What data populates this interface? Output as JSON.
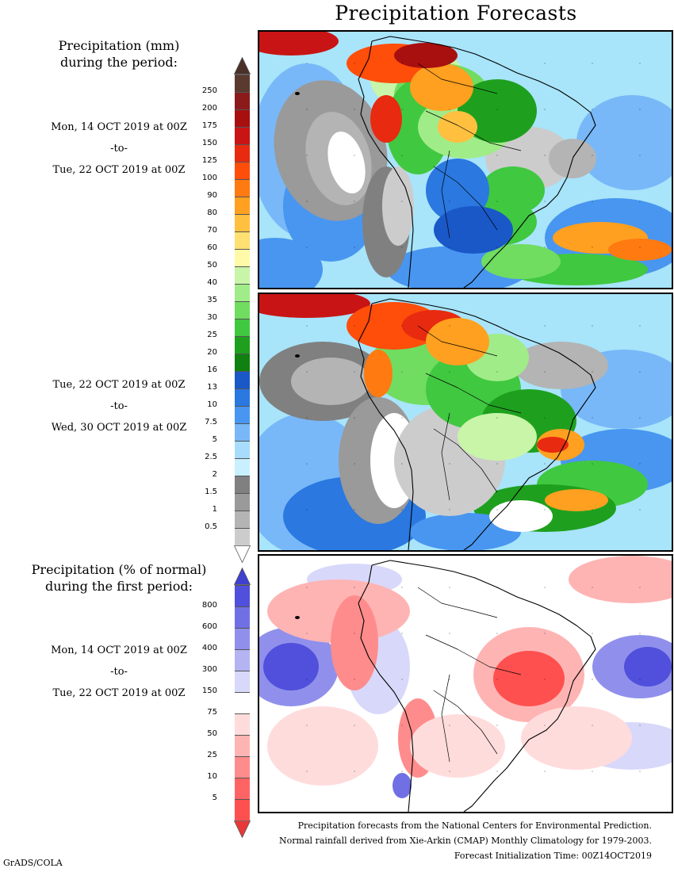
{
  "title": "Precipitation Forecasts",
  "left_column": {
    "precip_heading": [
      "Precipitation (mm)",
      "during the period:"
    ],
    "period1": {
      "start": "Mon, 14 OCT 2019 at 00Z",
      "sep": "-to-",
      "end": "Tue, 22 OCT 2019 at 00Z"
    },
    "period2": {
      "start": "Tue, 22 OCT 2019 at 00Z",
      "sep": "-to-",
      "end": "Wed, 30 OCT 2019 at 00Z"
    },
    "pct_heading": [
      "Precipitation (% of normal)",
      "during the first period:"
    ],
    "period3": {
      "start": "Mon, 14 OCT 2019 at 00Z",
      "sep": "-to-",
      "end": "Tue, 22 OCT 2019 at 00Z"
    }
  },
  "precip_scale": {
    "labels": [
      "250",
      "200",
      "175",
      "150",
      "125",
      "100",
      "90",
      "80",
      "70",
      "60",
      "50",
      "40",
      "35",
      "30",
      "25",
      "20",
      "16",
      "13",
      "10",
      "7.5",
      "5",
      "2.5",
      "2",
      "1.5",
      "1",
      "0.5"
    ],
    "colors": [
      "#5a3a2e",
      "#8b1a1a",
      "#a80f0f",
      "#c81414",
      "#e82a10",
      "#ff4d0a",
      "#ff7a10",
      "#ffa020",
      "#ffc040",
      "#ffe070",
      "#fffaa8",
      "#c8f5a8",
      "#a0ec88",
      "#70dc60",
      "#40c840",
      "#1ea01e",
      "#108010",
      "#1a58c8",
      "#2a78e0",
      "#4896f0",
      "#78b8f8",
      "#a8dcfc",
      "#c8f0ff",
      "#808080",
      "#9a9a9a",
      "#b4b4b4",
      "#cccccc"
    ],
    "over_color": "#4a3028",
    "under_color": "#ffffff"
  },
  "pct_scale": {
    "labels": [
      "800",
      "600",
      "400",
      "300",
      "150",
      "75",
      "50",
      "25",
      "10",
      "5"
    ],
    "colors": [
      "#5050dc",
      "#7070e4",
      "#9090ec",
      "#b4b4f2",
      "#d8d8fa",
      "#ffffff",
      "#ffdcdc",
      "#ffb4b4",
      "#ff8c8c",
      "#ff6464",
      "#ff5050"
    ],
    "over_color": "#4040d0",
    "under_color": "#e83838"
  },
  "maps": {
    "panel1": "Precipitation (mm) 14-22 OCT 2019",
    "panel2": "Precipitation (mm) 22-30 OCT 2019",
    "panel3": "Precipitation (% of normal) 14-22 OCT 2019"
  },
  "footer": {
    "line1": "Precipitation forecasts from the National Centers for Environmental Prediction.",
    "line2": "Normal rainfall derived from Xie-Arkin (CMAP) Monthly Climatology for 1979-2003.",
    "line3": "Forecast Initialization Time: 00Z14OCT2019",
    "credit": "GrADS/COLA"
  }
}
